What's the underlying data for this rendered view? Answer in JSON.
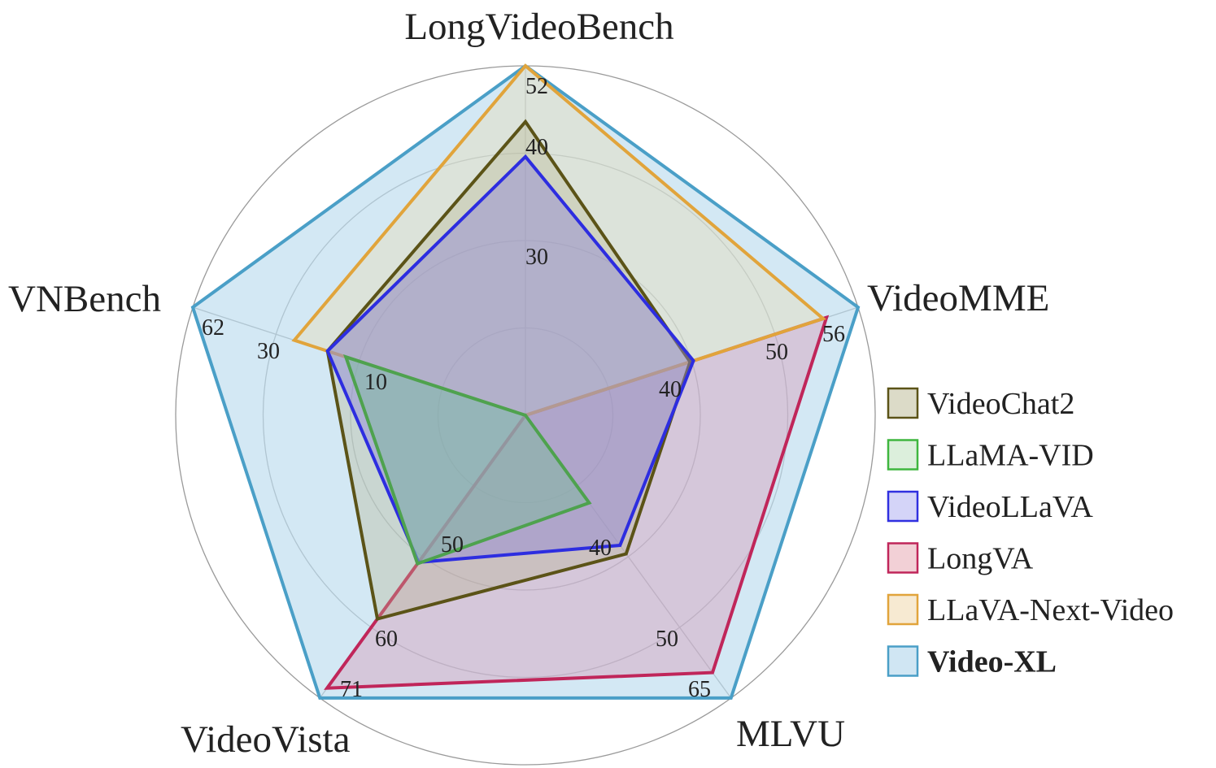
{
  "chart_data": {
    "type": "radar",
    "axes": [
      "LongVideoBench",
      "VideoMME",
      "MLVU",
      "VideoVista",
      "VNBench"
    ],
    "rings": 4,
    "axis_ticks": [
      {
        "axis": "LongVideoBench",
        "labels": [
          "30",
          "40",
          "52"
        ]
      },
      {
        "axis": "VideoMME",
        "labels": [
          "40",
          "50",
          "56"
        ]
      },
      {
        "axis": "MLVU",
        "labels": [
          "40",
          "50",
          "65"
        ]
      },
      {
        "axis": "VideoVista",
        "labels": [
          "50",
          "60",
          "71"
        ]
      },
      {
        "axis": "VNBench",
        "labels": [
          "10",
          "30",
          "62"
        ]
      }
    ],
    "series": [
      {
        "name": "Video-XL",
        "values": [
          1.0,
          1.0,
          1.0,
          1.0,
          1.0
        ],
        "stroke": "#4a9fc7",
        "fill": "#bcdcee",
        "fill_opacity": 0.65
      },
      {
        "name": "LongVA",
        "values": [
          0.0,
          0.905,
          0.91,
          0.965,
          0.0
        ],
        "stroke": "#c0265a",
        "fill": "#d98aa8",
        "fill_opacity": 0.35
      },
      {
        "name": "LLaVA-Next-Video",
        "values": [
          1.0,
          0.895,
          0.0,
          0.0,
          0.695
        ],
        "stroke": "#e1a43b",
        "fill": "#efd9a8",
        "fill_opacity": 0.35
      },
      {
        "name": "VideoChat2",
        "values": [
          0.84,
          0.495,
          0.49,
          0.72,
          0.595
        ],
        "stroke": "#5b5317",
        "fill": "#b8b48e",
        "fill_opacity": 0.35
      },
      {
        "name": "VideoLLaVA",
        "values": [
          0.74,
          0.505,
          0.46,
          0.52,
          0.595
        ],
        "stroke": "#2d2de0",
        "fill": "#8d86d8",
        "fill_opacity": 0.45
      },
      {
        "name": "LLaMA-VID",
        "values": [
          0.0,
          0.0,
          0.31,
          0.525,
          0.54
        ],
        "stroke": "#4ea24e",
        "fill": "#82b8a0",
        "fill_opacity": 0.55
      }
    ]
  },
  "legend": [
    {
      "label": "VideoChat2",
      "stroke": "#5b5317",
      "fill": "#dcdbc8",
      "bold": false
    },
    {
      "label": "LLaMA-VID",
      "stroke": "#3fb63f",
      "fill": "#dcefdc",
      "bold": false
    },
    {
      "label": "VideoLLaVA",
      "stroke": "#3030e0",
      "fill": "#d4d4f8",
      "bold": false
    },
    {
      "label": "LongVA",
      "stroke": "#c0265a",
      "fill": "#f2d0d6",
      "bold": false
    },
    {
      "label": "LLaVA-Next-Video",
      "stroke": "#e1a43b",
      "fill": "#f7ead2",
      "bold": false
    },
    {
      "label": "Video-XL",
      "stroke": "#4a9fc7",
      "fill": "#d0e6f3",
      "bold": true
    }
  ]
}
